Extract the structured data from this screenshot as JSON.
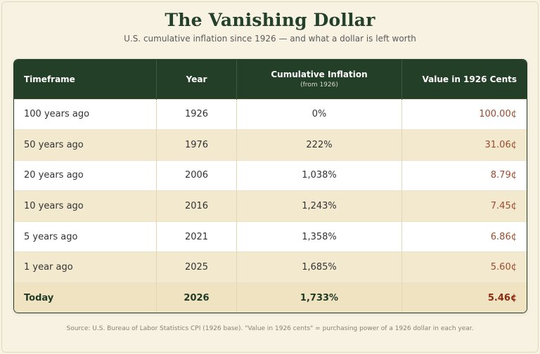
{
  "title": "The Vanishing Dollar",
  "subtitle": "U.S. cumulative inflation since 1926 — and what a dollar is left worth",
  "table": {
    "headers": {
      "timeframe": "Timeframe",
      "year": "Year",
      "inflation": "Cumulative Inflation",
      "inflation_sub": "(from 1926)",
      "value": "Value in 1926 Cents"
    },
    "rows": [
      {
        "timeframe": "100 years ago",
        "year": "1926",
        "inflation": "0%",
        "value": "100.00¢"
      },
      {
        "timeframe": "50 years ago",
        "year": "1976",
        "inflation": "222%",
        "value": "31.06¢"
      },
      {
        "timeframe": "20 years ago",
        "year": "2006",
        "inflation": "1,038%",
        "value": "8.79¢"
      },
      {
        "timeframe": "10 years ago",
        "year": "2016",
        "inflation": "1,243%",
        "value": "7.45¢"
      },
      {
        "timeframe": "5 years ago",
        "year": "2021",
        "inflation": "1,358%",
        "value": "6.86¢"
      },
      {
        "timeframe": "1 year ago",
        "year": "2025",
        "inflation": "1,685%",
        "value": "5.60¢"
      },
      {
        "timeframe": "Today",
        "year": "2026",
        "inflation": "1,733%",
        "value": "5.46¢"
      }
    ]
  },
  "source": "Source: U.S. Bureau of Labor Statistics CPI (1926 base). \"Value in 1926 cents\" = purchasing power of a 1926 dollar in each year.",
  "colors": {
    "header_bg": "#243f27",
    "title": "#23402a",
    "value_text": "#9c4a2e",
    "stripe": "#f3e9cf",
    "page_bg": "#f8f2e3"
  }
}
